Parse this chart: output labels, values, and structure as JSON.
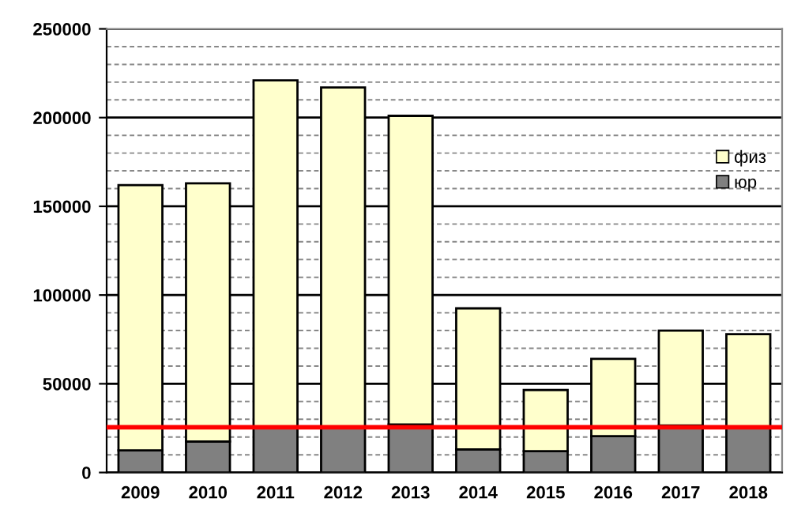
{
  "chart_data": {
    "type": "bar",
    "stacked": true,
    "categories": [
      "2009",
      "2010",
      "2011",
      "2012",
      "2013",
      "2014",
      "2015",
      "2016",
      "2017",
      "2018"
    ],
    "series": [
      {
        "name": "юр",
        "color": "#808080",
        "values": [
          12500,
          17500,
          25000,
          25000,
          27000,
          13000,
          12000,
          20500,
          26500,
          25500
        ]
      },
      {
        "name": "физ",
        "color": "#ffffcc",
        "values": [
          149500,
          145500,
          196000,
          192000,
          174000,
          79500,
          34500,
          43500,
          53500,
          52500
        ]
      }
    ],
    "ylim": [
      0,
      250000
    ],
    "yticks": [
      0,
      50000,
      100000,
      150000,
      200000,
      250000
    ],
    "grid": "y",
    "legend": "right",
    "ref_lines": [
      {
        "axis": "y",
        "value": 25500,
        "color": "#ff0000"
      }
    ]
  }
}
